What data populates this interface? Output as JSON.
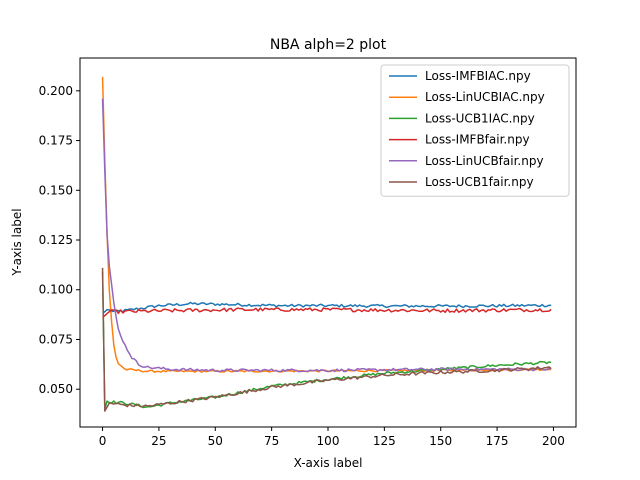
{
  "chart_data": {
    "type": "line",
    "title": "NBA alph=2 plot",
    "xlabel": "X-axis label",
    "ylabel": "Y-axis label",
    "xlim": [
      -10,
      210
    ],
    "ylim": [
      0.031,
      0.2165
    ],
    "xticks": [
      0,
      25,
      50,
      75,
      100,
      125,
      150,
      175,
      200
    ],
    "yticks": [
      0.05,
      0.075,
      0.1,
      0.125,
      0.15,
      0.175,
      0.2
    ],
    "ytick_labels": [
      "0.050",
      "0.075",
      "0.100",
      "0.125",
      "0.150",
      "0.175",
      "0.200"
    ],
    "grid": false,
    "legend_position": "top-right",
    "x": {
      "start": 0,
      "end": 199,
      "step": 1
    },
    "series": [
      {
        "name": "Loss-IMFBIAC.npy",
        "color": "#1f77b4",
        "keypoints": [
          [
            0,
            0.088
          ],
          [
            2,
            0.09
          ],
          [
            5,
            0.089
          ],
          [
            10,
            0.0895
          ],
          [
            25,
            0.092
          ],
          [
            40,
            0.093
          ],
          [
            60,
            0.0925
          ],
          [
            80,
            0.092
          ],
          [
            100,
            0.092
          ],
          [
            130,
            0.0918
          ],
          [
            160,
            0.0918
          ],
          [
            180,
            0.092
          ],
          [
            199,
            0.0922
          ]
        ],
        "noise": 0.0007
      },
      {
        "name": "Loss-LinUCBIAC.npy",
        "color": "#ff7f0e",
        "keypoints": [
          [
            0,
            0.207
          ],
          [
            1,
            0.165
          ],
          [
            2,
            0.128
          ],
          [
            3,
            0.1
          ],
          [
            4,
            0.084
          ],
          [
            5,
            0.072
          ],
          [
            6,
            0.066
          ],
          [
            7,
            0.063
          ],
          [
            8,
            0.062
          ],
          [
            10,
            0.06
          ],
          [
            15,
            0.0595
          ],
          [
            20,
            0.059
          ],
          [
            50,
            0.059
          ],
          [
            100,
            0.0592
          ],
          [
            150,
            0.0595
          ],
          [
            199,
            0.06
          ]
        ],
        "noise": 0.0005
      },
      {
        "name": "Loss-UCB1IAC.npy",
        "color": "#2ca02c",
        "keypoints": [
          [
            0,
            0.109
          ],
          [
            1,
            0.04
          ],
          [
            2,
            0.044
          ],
          [
            5,
            0.0435
          ],
          [
            10,
            0.043
          ],
          [
            20,
            0.041
          ],
          [
            30,
            0.043
          ],
          [
            50,
            0.046
          ],
          [
            75,
            0.0515
          ],
          [
            100,
            0.055
          ],
          [
            125,
            0.058
          ],
          [
            150,
            0.06
          ],
          [
            175,
            0.062
          ],
          [
            199,
            0.0635
          ]
        ],
        "noise": 0.0007
      },
      {
        "name": "Loss-IMFBfair.npy",
        "color": "#d62728",
        "keypoints": [
          [
            0,
            0.086
          ],
          [
            3,
            0.089
          ],
          [
            10,
            0.089
          ],
          [
            30,
            0.0895
          ],
          [
            60,
            0.09
          ],
          [
            100,
            0.09
          ],
          [
            150,
            0.0895
          ],
          [
            199,
            0.09
          ]
        ],
        "noise": 0.0009
      },
      {
        "name": "Loss-LinUCBfair.npy",
        "color": "#9467bd",
        "keypoints": [
          [
            0,
            0.196
          ],
          [
            1,
            0.16
          ],
          [
            2,
            0.128
          ],
          [
            3,
            0.112
          ],
          [
            5,
            0.093
          ],
          [
            7,
            0.08
          ],
          [
            10,
            0.072
          ],
          [
            13,
            0.066
          ],
          [
            16,
            0.0625
          ],
          [
            20,
            0.061
          ],
          [
            30,
            0.06
          ],
          [
            50,
            0.0595
          ],
          [
            100,
            0.0595
          ],
          [
            150,
            0.06
          ],
          [
            199,
            0.06
          ]
        ],
        "noise": 0.0007
      },
      {
        "name": "Loss-UCB1fair.npy",
        "color": "#8c564b",
        "keypoints": [
          [
            0,
            0.111
          ],
          [
            1,
            0.039
          ],
          [
            3,
            0.043
          ],
          [
            10,
            0.042
          ],
          [
            20,
            0.0415
          ],
          [
            30,
            0.043
          ],
          [
            50,
            0.046
          ],
          [
            75,
            0.051
          ],
          [
            100,
            0.0545
          ],
          [
            125,
            0.057
          ],
          [
            150,
            0.0585
          ],
          [
            175,
            0.0595
          ],
          [
            199,
            0.061
          ]
        ],
        "noise": 0.0008
      }
    ]
  }
}
